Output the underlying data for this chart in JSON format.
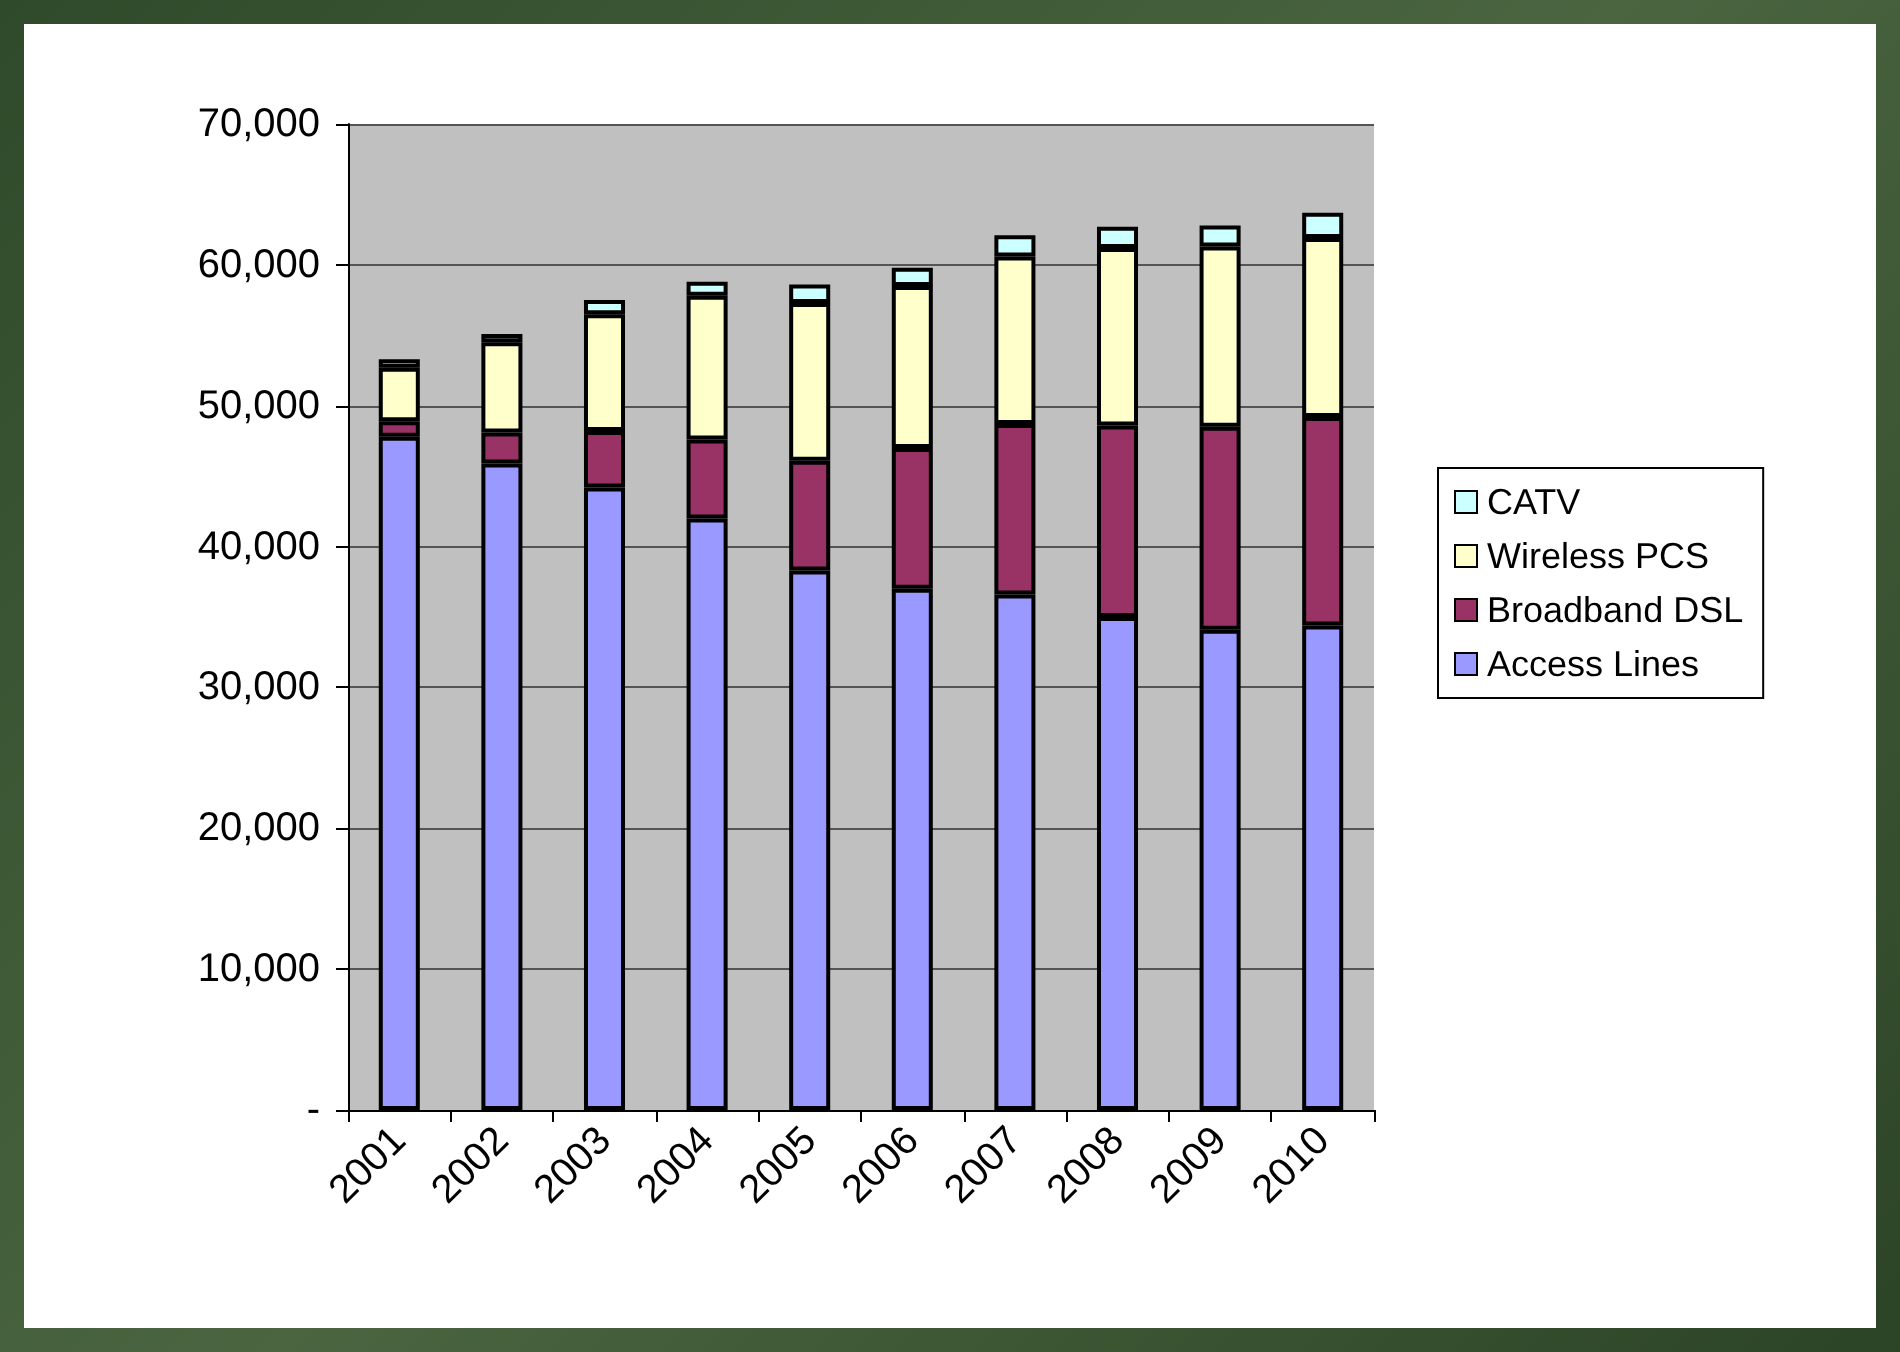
{
  "chart_data": {
    "type": "bar",
    "stacked": true,
    "categories": [
      "2001",
      "2002",
      "2003",
      "2004",
      "2005",
      "2006",
      "2007",
      "2008",
      "2009",
      "2010"
    ],
    "series": [
      {
        "name": "Access Lines",
        "color": "#9999ff",
        "values": [
          47800,
          45900,
          44200,
          42000,
          38300,
          37000,
          36600,
          35000,
          34100,
          34400
        ]
      },
      {
        "name": "Broadband DSL",
        "color": "#993366",
        "values": [
          1100,
          2200,
          4000,
          5600,
          7800,
          10000,
          12100,
          13600,
          14400,
          14800
        ]
      },
      {
        "name": "Wireless PCS",
        "color": "#ffffcc",
        "values": [
          3800,
          6400,
          8300,
          10200,
          11200,
          11500,
          11900,
          12600,
          12800,
          12700
        ]
      },
      {
        "name": "CATV",
        "color": "#ccffff",
        "values": [
          600,
          600,
          1000,
          1000,
          1300,
          1300,
          1500,
          1500,
          1500,
          1800
        ]
      }
    ],
    "ylim": [
      0,
      70000
    ],
    "yticks": [
      {
        "value": 0,
        "label": "-"
      },
      {
        "value": 10000,
        "label": "10,000"
      },
      {
        "value": 20000,
        "label": "20,000"
      },
      {
        "value": 30000,
        "label": "30,000"
      },
      {
        "value": 40000,
        "label": "40,000"
      },
      {
        "value": 50000,
        "label": "50,000"
      },
      {
        "value": 60000,
        "label": "60,000"
      },
      {
        "value": 70000,
        "label": "70,000"
      }
    ],
    "grid": "y",
    "legend": "right"
  }
}
